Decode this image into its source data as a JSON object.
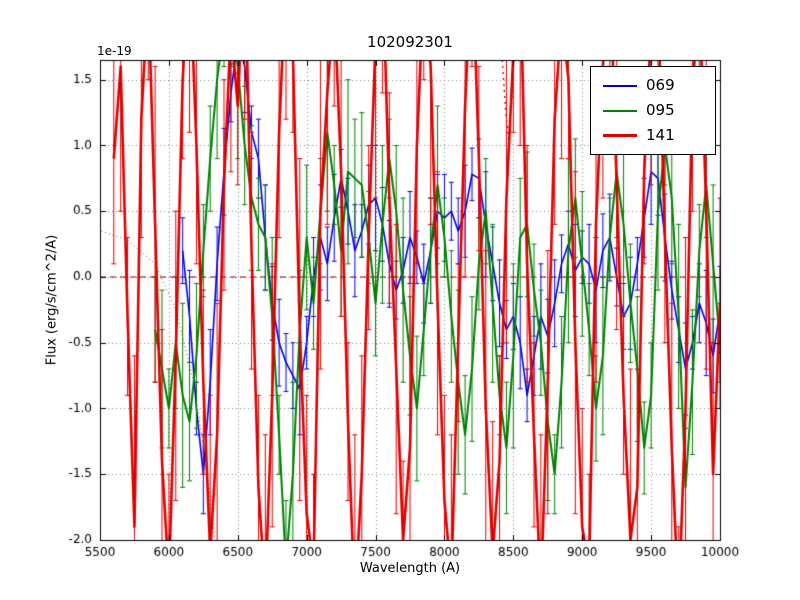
{
  "chart_data": {
    "type": "line",
    "title": "102092301",
    "xlabel": "Wavelength (A)",
    "ylabel": "Flux (erg/s/cm^2/A)",
    "offset_label": "1e-19",
    "xlim": [
      5500,
      10000
    ],
    "ylim": [
      -2.0,
      1.65
    ],
    "grid": true,
    "legend_position": "upper right",
    "xticks": [
      5500,
      6000,
      6500,
      7000,
      7500,
      8000,
      8500,
      9000,
      9500,
      10000
    ],
    "xtick_labels": [
      "5500",
      "6000",
      "6500",
      "7000",
      "7500",
      "8000",
      "8500",
      "9000",
      "9500",
      "10000"
    ],
    "yticks": [
      -2.0,
      -1.5,
      -1.0,
      -0.5,
      0.0,
      0.5,
      1.0,
      1.5
    ],
    "ytick_labels": [
      "-2.0",
      "-1.5",
      "-1.0",
      "-0.5",
      "0.0",
      "0.5",
      "1.0",
      "1.5"
    ],
    "zero_line": {
      "y": 0,
      "color": "#8b0000",
      "dash": [
        6,
        4
      ]
    },
    "dotted_segments": [
      {
        "color": "#aa3333",
        "dash": [
          1,
          3
        ],
        "lw": 1,
        "points": [
          [
            5510,
            0.35
          ],
          [
            5700,
            0.28
          ],
          [
            5900,
            0.1
          ],
          [
            6050,
            -0.25
          ],
          [
            6180,
            -0.8
          ],
          [
            6280,
            -1.5
          ],
          [
            6340,
            -2.05
          ]
        ]
      },
      {
        "color": "#dd0000",
        "dash": [
          2,
          4
        ],
        "lw": 1.4,
        "points": [
          [
            8420,
            1.65
          ],
          [
            8445,
            1.25
          ],
          [
            8465,
            1.05
          ],
          [
            8485,
            1.3
          ],
          [
            8505,
            1.65
          ]
        ]
      }
    ],
    "series": [
      {
        "name": "069",
        "color": "#0000e0",
        "lw": 1.6,
        "x_start": 6100,
        "x_step": 50,
        "y": [
          0.2,
          -0.3,
          -1.0,
          -1.5,
          -0.8,
          0.1,
          0.8,
          1.4,
          1.8,
          1.6,
          1.1,
          0.9,
          0.3,
          -0.2,
          -0.5,
          -0.65,
          -0.75,
          -0.85,
          -0.5,
          0.0,
          0.3,
          0.1,
          0.45,
          0.75,
          0.5,
          0.2,
          0.35,
          0.55,
          0.6,
          0.4,
          0.1,
          -0.1,
          0.05,
          0.3,
          0.15,
          -0.05,
          0.2,
          0.5,
          0.45,
          0.5,
          0.35,
          0.5,
          0.78,
          0.75,
          0.4,
          0.1,
          -0.2,
          -0.4,
          -0.3,
          -0.5,
          -0.9,
          -0.6,
          -0.3,
          -0.45,
          -0.2,
          0.1,
          0.25,
          0.05,
          0.15,
          0.1,
          -0.1,
          0.2,
          0.3,
          0.0,
          -0.3,
          -0.2,
          0.1,
          0.45,
          0.8,
          0.75,
          0.3,
          -0.1,
          -0.4,
          -0.7,
          -0.5,
          -0.2,
          -0.35,
          -0.6,
          -0.25
        ],
        "yerr": [
          0.25,
          0.35,
          0.2,
          0.3,
          0.4,
          0.28,
          0.33,
          0.22,
          0.25,
          0.35,
          0.2,
          0.3,
          0.4,
          0.28,
          0.33,
          0.22,
          0.25,
          0.35,
          0.2,
          0.3,
          0.4,
          0.28,
          0.33,
          0.22,
          0.25,
          0.35,
          0.2,
          0.3,
          0.4,
          0.28,
          0.33,
          0.22,
          0.25,
          0.35,
          0.2,
          0.3,
          0.4,
          0.28,
          0.33,
          0.22,
          0.25,
          0.35,
          0.2,
          0.3,
          0.4,
          0.28,
          0.33,
          0.22,
          0.25,
          0.35,
          0.2,
          0.3,
          0.4,
          0.28,
          0.33,
          0.22,
          0.25,
          0.35,
          0.2,
          0.3,
          0.4,
          0.28,
          0.33,
          0.22,
          0.25,
          0.35,
          0.2,
          0.3,
          0.4,
          0.28,
          0.33,
          0.22,
          0.25,
          0.35,
          0.2,
          0.3,
          0.4,
          0.28,
          0.33
        ]
      },
      {
        "name": "095",
        "color": "#007f00",
        "lw": 2.0,
        "x_start": 5900,
        "x_step": 50,
        "y": [
          -0.4,
          -0.7,
          -1.0,
          -0.5,
          -0.9,
          -1.1,
          -0.6,
          0.2,
          0.9,
          1.5,
          1.9,
          2.1,
          1.6,
          1.0,
          0.6,
          0.4,
          0.3,
          -0.3,
          -1.2,
          -2.2,
          -1.5,
          -0.4,
          0.3,
          -0.2,
          0.5,
          1.1,
          0.7,
          0.2,
          0.8,
          0.75,
          0.7,
          0.3,
          -0.2,
          0.4,
          0.9,
          0.5,
          -0.1,
          -0.6,
          -1.0,
          -0.4,
          0.2,
          0.7,
          0.3,
          -0.3,
          -0.8,
          -1.2,
          -0.7,
          0.1,
          0.5,
          -0.2,
          -0.9,
          -1.3,
          -0.6,
          0.3,
          0.4,
          -0.1,
          -0.5,
          -1.1,
          -1.5,
          -0.8,
          0.2,
          0.6,
          0.1,
          -0.4,
          -1.0,
          -0.6,
          0.3,
          0.8,
          0.4,
          -0.2,
          -0.7,
          -1.3,
          -0.9,
          0.5,
          1.0,
          0.6,
          -0.3,
          -1.6,
          -0.8,
          0.2,
          0.7,
          0.1,
          -0.5
        ],
        "yerr": [
          0.4,
          0.6,
          0.3,
          0.5,
          0.7,
          0.45,
          0.55,
          0.35,
          0.4,
          0.6,
          0.3,
          0.5,
          0.7,
          0.45,
          0.55,
          0.35,
          0.4,
          0.6,
          0.3,
          0.5,
          0.7,
          0.45,
          0.55,
          0.35,
          0.4,
          0.6,
          0.3,
          0.5,
          0.7,
          0.45,
          0.55,
          0.35,
          0.4,
          0.6,
          0.3,
          0.5,
          0.7,
          0.45,
          0.55,
          0.35,
          0.4,
          0.6,
          0.3,
          0.5,
          0.7,
          0.45,
          0.55,
          0.35,
          0.4,
          0.6,
          0.3,
          0.5,
          0.7,
          0.45,
          0.55,
          0.35,
          0.4,
          0.6,
          0.3,
          0.5,
          0.7,
          0.45,
          0.55,
          0.35,
          0.4,
          0.6,
          0.3,
          0.5,
          0.7,
          0.45,
          0.55,
          0.35,
          0.4,
          0.6,
          0.3,
          0.5,
          0.7,
          0.45,
          0.55,
          0.35,
          0.4,
          0.6,
          0.3
        ]
      },
      {
        "name": "141",
        "color": "#e00000",
        "lw": 2.6,
        "x_start": 5600,
        "x_step": 50,
        "y": [
          0.9,
          1.6,
          -0.3,
          -1.9,
          1.2,
          2.2,
          0.4,
          -1.4,
          -2.3,
          -0.6,
          1.5,
          2.4,
          1.0,
          -0.8,
          -2.1,
          -1.2,
          0.7,
          1.9,
          1.3,
          2.5,
          0.2,
          -1.6,
          -2.4,
          -0.9,
          1.1,
          2.3,
          1.7,
          -0.4,
          -1.8,
          -2.2,
          0.5,
          1.4,
          2.1,
          0.8,
          -1.1,
          -2.5,
          -1.5,
          0.3,
          1.8,
          2.4,
          0.6,
          -0.7,
          -2.0,
          -1.3,
          1.0,
          2.2,
          1.6,
          -0.2,
          -1.7,
          -2.3,
          -0.5,
          1.3,
          2.5,
          0.9,
          -1.0,
          -2.1,
          -1.4,
          0.6,
          1.7,
          2.3,
          0.1,
          -1.2,
          -2.4,
          -0.8,
          1.2,
          2.0,
          1.5,
          -0.5,
          -1.9,
          -2.2,
          0.4,
          1.6,
          2.4,
          0.7,
          -0.9,
          -2.0,
          -1.6,
          0.8,
          1.9,
          2.1,
          0.3,
          -1.3,
          -2.5,
          -1.0,
          1.4,
          2.2,
          0.5,
          -1.5,
          -0.2
        ],
        "yerr": [
          0.8,
          1.1,
          0.6,
          1.3,
          0.9,
          0.7,
          1.2,
          1.0,
          0.8,
          1.1,
          0.6,
          1.3,
          0.9,
          0.7,
          1.2,
          1.0,
          0.8,
          1.1,
          0.6,
          1.3,
          0.9,
          0.7,
          1.2,
          1.0,
          0.8,
          1.1,
          0.6,
          1.3,
          0.9,
          0.7,
          1.2,
          1.0,
          0.8,
          1.1,
          0.6,
          1.3,
          0.9,
          0.7,
          1.2,
          1.0,
          0.8,
          1.1,
          0.6,
          1.3,
          0.9,
          0.7,
          1.2,
          1.0,
          0.8,
          1.1,
          0.6,
          1.3,
          0.9,
          0.7,
          1.2,
          1.0,
          0.8,
          1.1,
          0.6,
          1.3,
          0.9,
          0.7,
          1.2,
          1.0,
          0.8,
          1.1,
          0.6,
          1.3,
          0.9,
          0.7,
          1.2,
          1.0,
          0.8,
          1.1,
          0.6,
          1.3,
          0.9,
          0.7,
          1.2,
          1.0,
          0.8,
          1.1,
          0.6,
          1.3,
          0.9,
          0.7,
          1.2,
          1.0,
          0.8
        ]
      }
    ]
  }
}
